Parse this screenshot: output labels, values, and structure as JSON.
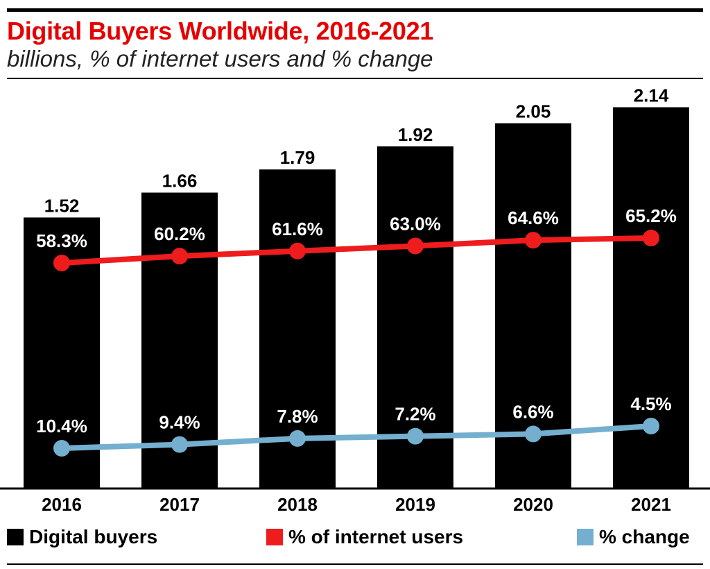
{
  "chart_data": {
    "type": "bar",
    "title": "Digital Buyers Worldwide, 2016-2021",
    "subtitle": "billions, % of internet users and % change",
    "categories": [
      "2016",
      "2017",
      "2018",
      "2019",
      "2020",
      "2021"
    ],
    "series": [
      {
        "name": "Digital buyers",
        "type": "bar",
        "values": [
          1.52,
          1.66,
          1.79,
          1.92,
          2.05,
          2.14
        ],
        "labels": [
          "1.52",
          "1.66",
          "1.79",
          "1.92",
          "2.05",
          "2.14"
        ],
        "color": "#000000"
      },
      {
        "name": "% of internet users",
        "type": "line",
        "values": [
          58.3,
          60.2,
          61.6,
          63.0,
          64.6,
          65.2
        ],
        "labels": [
          "58.3%",
          "60.2%",
          "61.6%",
          "63.0%",
          "64.6%",
          "65.2%"
        ],
        "color": "#ee1c1c"
      },
      {
        "name": "% change",
        "type": "line",
        "values": [
          10.4,
          9.4,
          7.8,
          7.2,
          6.6,
          4.5
        ],
        "labels": [
          "10.4%",
          "9.4%",
          "7.8%",
          "7.2%",
          "6.6%",
          "4.5%"
        ],
        "color": "#74afcf"
      }
    ],
    "xlabel": "",
    "ylabel": "",
    "grid": false,
    "legend_position": "bottom"
  }
}
